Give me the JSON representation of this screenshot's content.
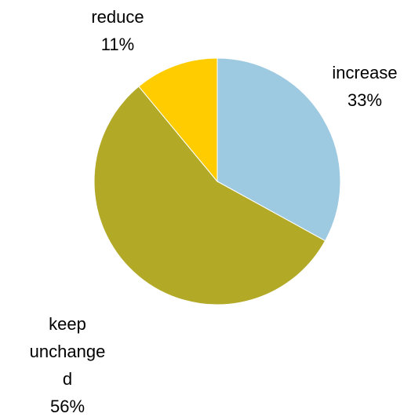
{
  "chart_data": {
    "type": "pie",
    "title": "",
    "slices": [
      {
        "label": "increase",
        "value": 33,
        "value_label": "33%",
        "color": "#9ECAE1"
      },
      {
        "label": "keep unchange d",
        "value": 56,
        "value_label": "56%",
        "color": "#B2A927"
      },
      {
        "label": "reduce",
        "value": 11,
        "value_label": "11%",
        "color": "#FFCC00"
      }
    ],
    "start_angle": "12 o'clock",
    "direction": "clockwise",
    "legend": "none",
    "data_labels": "outside"
  },
  "labels": {
    "increase": {
      "lines": [
        "increase"
      ],
      "value": "33%"
    },
    "keep": {
      "lines": [
        "keep",
        "unchange",
        "d"
      ],
      "value": "56%"
    },
    "reduce": {
      "lines": [
        "reduce"
      ],
      "value": "11%"
    }
  }
}
